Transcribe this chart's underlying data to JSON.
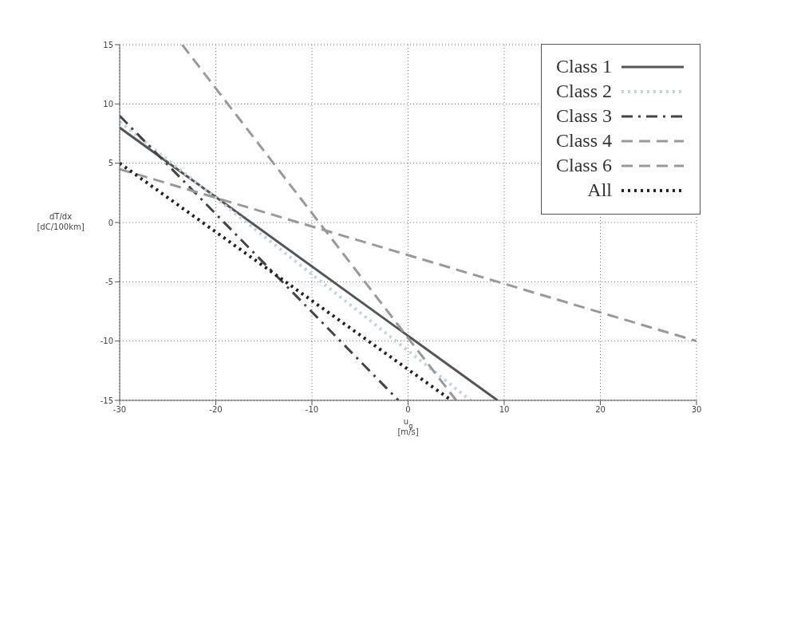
{
  "chart_data": {
    "type": "line",
    "xlabel": "u$_{g}$ [m/s]",
    "ylabel": "dT/dx [dC/100km]",
    "xlim": [
      -30,
      30
    ],
    "xticks": [
      -30,
      -20,
      -10,
      0,
      10,
      20,
      30
    ],
    "ylim": [
      -15,
      15
    ],
    "yticks": [
      -15,
      -10,
      -5,
      0,
      5,
      10,
      15
    ],
    "grid": true,
    "legend": "top right",
    "marker": "none",
    "series": [
      {
        "name": "Class 1",
        "color": "#555555",
        "line_style": "solid",
        "x": [
          -30,
          9.3
        ],
        "values": [
          8,
          -15
        ]
      },
      {
        "name": "Class 2",
        "color": "#c5d3dc",
        "line_style": "dotted",
        "x": [
          -30,
          6.5
        ],
        "values": [
          8.5,
          -15
        ]
      },
      {
        "name": "Class 3",
        "color": "#444444",
        "line_style": "dashdot",
        "x": [
          -30,
          -1
        ],
        "values": [
          9,
          -15
        ]
      },
      {
        "name": "Class 4",
        "color": "#999999",
        "line_style": "dashed",
        "x": [
          -23.5,
          5
        ],
        "values": [
          15,
          -15
        ]
      },
      {
        "name": "Class 6",
        "color": "#999999",
        "line_style": "dashed",
        "x": [
          -30,
          30
        ],
        "values": [
          4.5,
          -10
        ]
      },
      {
        "name": "All",
        "color": "#222222",
        "line_style": "dotted",
        "x": [
          -30,
          4.5
        ],
        "values": [
          5,
          -15
        ]
      }
    ]
  }
}
